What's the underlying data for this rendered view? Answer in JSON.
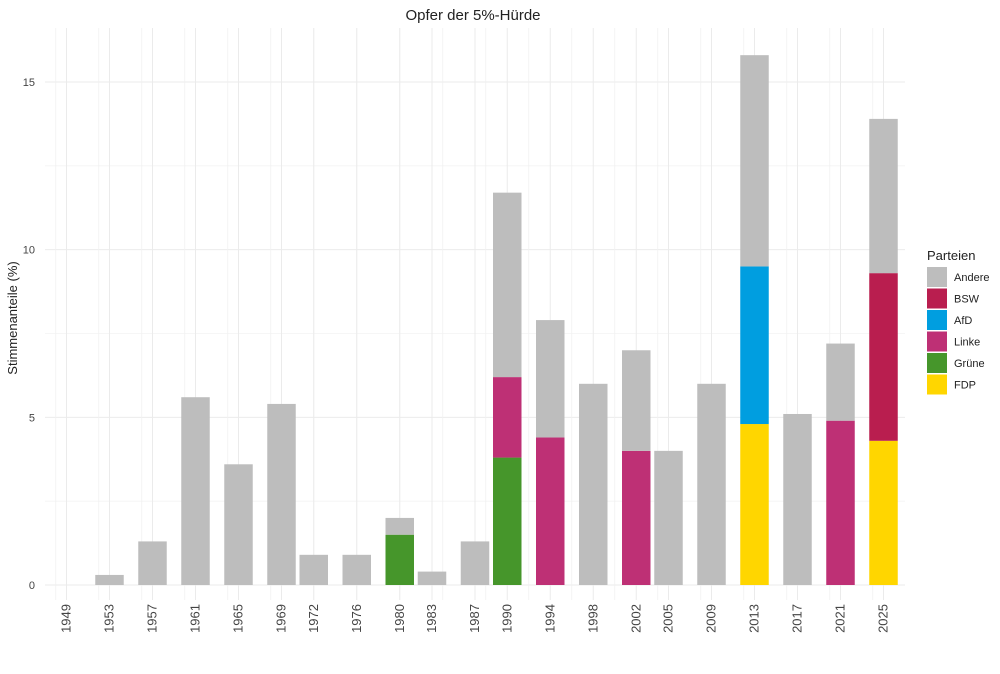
{
  "chart_data": {
    "type": "bar",
    "stacked": true,
    "title": "Opfer der 5%-Hürde",
    "xlabel": "",
    "ylabel": "Stimmenanteile (%)",
    "ylim": [
      0,
      16.5
    ],
    "yticks": [
      0,
      5,
      10,
      15
    ],
    "grid": true,
    "legend": {
      "title": "Parteien",
      "position": "right"
    },
    "x": [
      1949,
      1953,
      1957,
      1961,
      1965,
      1969,
      1972,
      1976,
      1980,
      1983,
      1987,
      1990,
      1994,
      1998,
      2002,
      2005,
      2009,
      2013,
      2017,
      2021,
      2025
    ],
    "series": [
      {
        "name": "FDP",
        "color": "#ffd600",
        "values": [
          0,
          0,
          0,
          0,
          0,
          0,
          0,
          0,
          0,
          0,
          0,
          0,
          0,
          0,
          0,
          0,
          0,
          4.8,
          0,
          0,
          4.3
        ]
      },
      {
        "name": "Grüne",
        "color": "#46962b",
        "values": [
          0,
          0,
          0,
          0,
          0,
          0,
          0,
          0,
          1.5,
          0,
          0,
          3.8,
          0,
          0,
          0,
          0,
          0,
          0,
          0,
          0,
          0
        ]
      },
      {
        "name": "Linke",
        "color": "#be3075",
        "values": [
          0,
          0,
          0,
          0,
          0,
          0,
          0,
          0,
          0,
          0,
          0,
          2.4,
          4.4,
          0,
          4.0,
          0,
          0,
          0,
          0,
          4.9,
          0
        ]
      },
      {
        "name": "AfD",
        "color": "#009ee0",
        "values": [
          0,
          0,
          0,
          0,
          0,
          0,
          0,
          0,
          0,
          0,
          0,
          0,
          0,
          0,
          0,
          0,
          0,
          4.7,
          0,
          0,
          0
        ]
      },
      {
        "name": "BSW",
        "color": "#b91e4f",
        "values": [
          0,
          0,
          0,
          0,
          0,
          0,
          0,
          0,
          0,
          0,
          0,
          0,
          0,
          0,
          0,
          0,
          0,
          0,
          0,
          0,
          5.0
        ]
      },
      {
        "name": "Andere",
        "color": "#bdbdbd",
        "values": [
          0,
          0.3,
          1.3,
          5.6,
          3.6,
          5.4,
          0.9,
          0.9,
          0.5,
          0.4,
          1.3,
          5.5,
          3.5,
          6.0,
          3.0,
          4.0,
          6.0,
          6.3,
          5.1,
          2.3,
          4.6
        ]
      }
    ],
    "legend_order": [
      "Andere",
      "BSW",
      "AfD",
      "Linke",
      "Grüne",
      "FDP"
    ]
  }
}
